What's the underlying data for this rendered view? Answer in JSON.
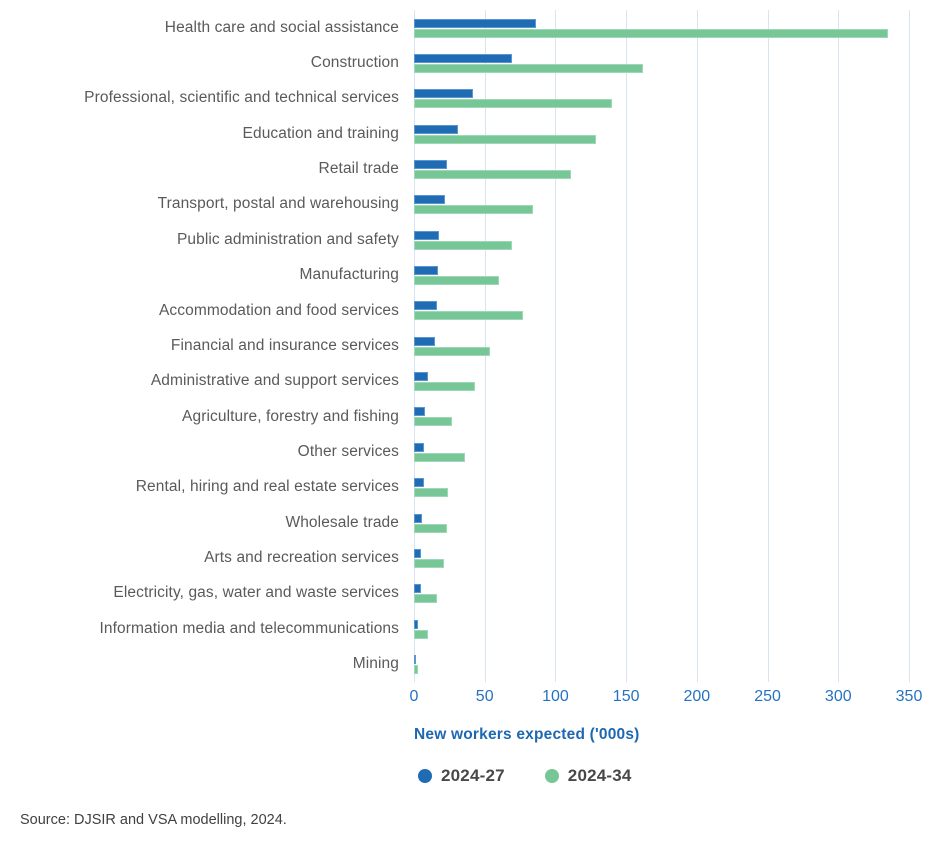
{
  "chart_data": {
    "type": "bar",
    "orientation": "horizontal",
    "title": "",
    "xlabel": "New workers expected ('000s)",
    "ylabel": "",
    "xlim": [
      0,
      350
    ],
    "xticks": [
      0,
      50,
      100,
      150,
      200,
      250,
      300,
      350
    ],
    "grid": true,
    "legend_position": "bottom",
    "categories": [
      "Health care and social assistance",
      "Construction",
      "Professional, scientific and technical services",
      "Education and training",
      "Retail trade",
      "Transport, postal and warehousing",
      "Public administration and safety",
      "Manufacturing",
      "Accommodation and food services",
      "Financial and insurance services",
      "Administrative and support services",
      "Agriculture, forestry and fishing",
      "Other services",
      "Rental, hiring and real estate services",
      "Wholesale trade",
      "Arts and recreation services",
      "Electricity, gas, water and waste services",
      "Information media and telecommunications",
      "Mining"
    ],
    "series": [
      {
        "name": "2024-27",
        "color": "#1F6CB4",
        "border_color": "#5B97CF",
        "values": [
          86,
          69,
          42,
          31,
          23,
          22,
          18,
          17,
          16,
          15,
          10,
          8,
          7,
          7,
          6,
          5,
          5,
          3,
          1
        ]
      },
      {
        "name": "2024-34",
        "color": "#76C795",
        "border_color": "#9FD8B8",
        "values": [
          335,
          162,
          140,
          129,
          111,
          84,
          69,
          60,
          77,
          54,
          43,
          27,
          36,
          24,
          23,
          21,
          16,
          10,
          3
        ]
      }
    ]
  },
  "colors": {
    "gridline": "#D8E4F2",
    "tick_label": "#2672C2",
    "axis_title": "#1E68B2",
    "category_label": "#5A5A5C",
    "legend_text": "#48484A",
    "source_text": "#414141"
  },
  "source_note": "Source: DJSIR and VSA modelling, 2024."
}
